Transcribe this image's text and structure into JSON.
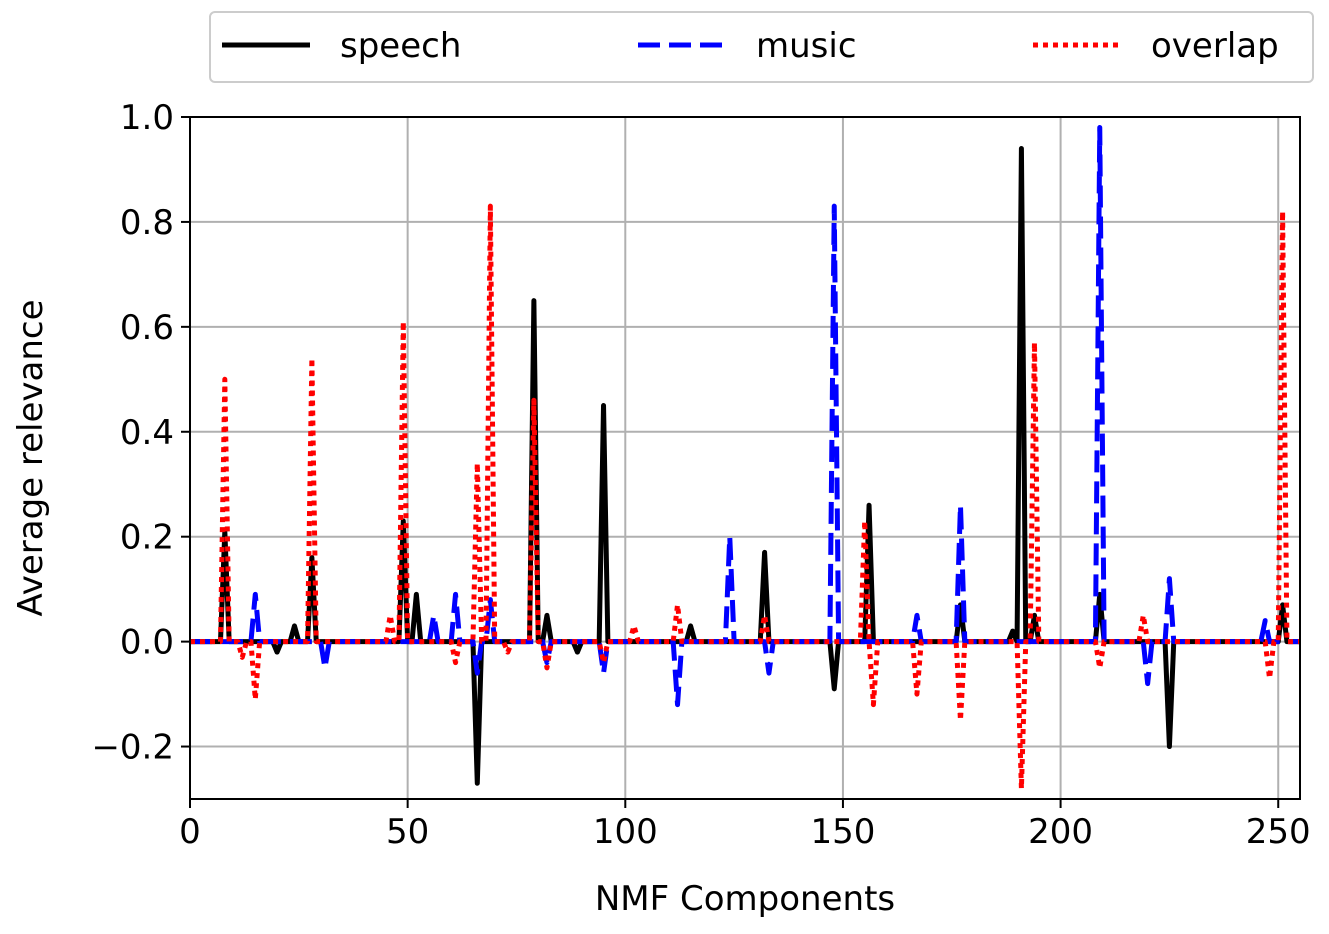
{
  "chart_data": {
    "type": "line",
    "xlabel": "NMF Components",
    "ylabel": "Average relevance",
    "xlim": [
      0,
      255
    ],
    "ylim": [
      -0.3,
      1.0
    ],
    "xticks": [
      0,
      50,
      100,
      150,
      200,
      250
    ],
    "yticks": [
      {
        "value": -0.2,
        "label": "−0.2"
      },
      {
        "value": 0,
        "label": "0.0"
      },
      0.2,
      0.4,
      0.6,
      0.8,
      {
        "value": 1,
        "label": "1.0"
      }
    ],
    "grid": true,
    "legend": "upper center",
    "series": [
      {
        "name": "speech",
        "color": "#000000",
        "style": "solid",
        "values": [
          0,
          0,
          0,
          0,
          0,
          0,
          0,
          0,
          0.21,
          0,
          0,
          0,
          0,
          0,
          0,
          0,
          0,
          0,
          0,
          0,
          -0.02,
          0,
          0,
          0,
          0.03,
          0,
          0,
          0,
          0.16,
          0,
          0,
          0,
          0,
          0,
          0,
          0,
          0,
          0,
          0,
          0,
          0,
          0,
          0,
          0,
          0,
          0,
          0,
          0,
          0,
          0.23,
          0,
          0,
          0.09,
          0,
          0,
          0,
          0,
          0,
          0,
          0,
          0,
          0,
          0,
          0,
          0,
          0,
          -0.27,
          0,
          0,
          0,
          0,
          0,
          0,
          0,
          0,
          0,
          0,
          0,
          0,
          0.65,
          0,
          0,
          0.05,
          0,
          0,
          0,
          0,
          0,
          0,
          -0.02,
          0,
          0,
          0,
          0,
          0,
          0.45,
          0,
          0,
          0,
          0,
          0,
          0,
          0,
          0,
          0,
          0,
          0,
          0,
          0,
          0,
          0,
          0,
          0,
          0,
          0,
          0.03,
          0,
          0,
          0,
          0,
          0,
          0,
          0,
          0,
          0,
          0,
          0,
          0,
          0,
          0,
          0,
          0,
          0.17,
          0,
          0,
          0,
          0,
          0,
          0,
          0,
          0,
          0,
          0,
          0,
          0,
          0,
          0,
          0,
          -0.09,
          0,
          0,
          0,
          0,
          0,
          0,
          0,
          0.26,
          0,
          0,
          0,
          0,
          0,
          0,
          0,
          0,
          0,
          0,
          0,
          0,
          0,
          0,
          0,
          0,
          0,
          0,
          0,
          0,
          0.07,
          0,
          0,
          0,
          0,
          0,
          0,
          0,
          0,
          0,
          0,
          0,
          0.02,
          0,
          0.94,
          0,
          0,
          0.05,
          0,
          0,
          0,
          0,
          0,
          0,
          0,
          0,
          0,
          0,
          0,
          0,
          0,
          0,
          0.09,
          0,
          0,
          0,
          0,
          0,
          0,
          0,
          0,
          0,
          0,
          0,
          0,
          0,
          0,
          0,
          -0.2,
          0,
          0,
          0,
          0,
          0,
          0,
          0,
          0,
          0,
          0,
          0,
          0,
          0,
          0,
          0,
          0,
          0,
          0,
          0,
          0,
          0,
          0,
          0,
          0,
          0,
          0.07,
          0,
          0,
          0,
          0
        ]
      },
      {
        "name": "music",
        "color": "#0000ff",
        "style": "dashed",
        "values": [
          0,
          0,
          0,
          0,
          0,
          0,
          0,
          0,
          0,
          0,
          0,
          0,
          0,
          0,
          0,
          0.09,
          0,
          0,
          0,
          0,
          0,
          0,
          0,
          0,
          0,
          0,
          0,
          0,
          0,
          0,
          0,
          -0.05,
          0,
          0,
          0,
          0,
          0,
          0,
          0,
          0,
          0,
          0,
          0,
          0,
          0,
          0,
          0,
          0,
          0,
          0,
          0,
          0,
          0,
          0,
          0,
          0,
          0.05,
          0,
          0,
          0,
          0,
          0.09,
          0,
          0,
          0,
          0,
          -0.06,
          0,
          0,
          0.08,
          0,
          0,
          0,
          0,
          0,
          0,
          0,
          0,
          0,
          0,
          0,
          0,
          -0.04,
          0,
          0,
          0,
          0,
          0,
          0,
          0,
          0,
          0,
          0,
          0,
          0,
          -0.06,
          0,
          0,
          0,
          0,
          0,
          0,
          0,
          0,
          0,
          0,
          0,
          0,
          0,
          0,
          0,
          0,
          -0.12,
          0,
          0,
          0,
          0,
          0,
          0,
          0,
          0,
          0,
          0,
          0,
          0.2,
          0,
          0,
          0,
          0,
          0,
          0,
          0,
          0,
          -0.06,
          0,
          0,
          0,
          0,
          0,
          0,
          0,
          0,
          0,
          0,
          0,
          0,
          0,
          0,
          0.83,
          0,
          0,
          0,
          0,
          0,
          0,
          0,
          0,
          0,
          0,
          0,
          0,
          0,
          0,
          0,
          0,
          0,
          0,
          0.05,
          0,
          0,
          0,
          0,
          0,
          0,
          0,
          0,
          0,
          0.26,
          0,
          0,
          0,
          0,
          0,
          0,
          0,
          0,
          0,
          0,
          0,
          0,
          0,
          0,
          0,
          0,
          0,
          0,
          0,
          0,
          0,
          0,
          0,
          0,
          0,
          0,
          0,
          0,
          0,
          0,
          0,
          0.98,
          0,
          0,
          0,
          0,
          0,
          0,
          0,
          0,
          0,
          0,
          -0.08,
          0,
          0,
          0,
          0,
          0.12,
          0,
          0,
          0,
          0,
          0,
          0,
          0,
          0,
          0,
          0,
          0,
          0,
          0,
          0,
          0,
          0,
          0,
          0,
          0,
          0,
          0,
          0.04,
          0,
          0,
          0,
          0,
          0,
          0,
          0,
          0
        ]
      },
      {
        "name": "overlap",
        "color": "#ff0000",
        "style": "dotted",
        "values": [
          0,
          0,
          0,
          0,
          0,
          0,
          0,
          0,
          0.5,
          0,
          0,
          0,
          -0.03,
          0,
          0,
          -0.11,
          0,
          0,
          0,
          0,
          0,
          0,
          0,
          0,
          0,
          0,
          0,
          0,
          0.54,
          0,
          0,
          0,
          0,
          0,
          0,
          0,
          0,
          0,
          0,
          0,
          0,
          0,
          0,
          0,
          0,
          0,
          0.05,
          0,
          0,
          0.61,
          0,
          0,
          0,
          0,
          0,
          0,
          0,
          0,
          0,
          0,
          0,
          -0.04,
          0,
          0,
          0,
          0,
          0.34,
          0,
          0,
          0.83,
          0,
          0,
          0,
          -0.02,
          0,
          0,
          0,
          0,
          0,
          0.46,
          0,
          0,
          -0.05,
          0,
          0,
          0,
          0,
          0,
          0,
          0,
          0,
          0,
          0,
          0,
          0,
          -0.04,
          0,
          0,
          0,
          0,
          0,
          0,
          0.03,
          0,
          0,
          0,
          0,
          0,
          0,
          0,
          0,
          0,
          0.07,
          0,
          0,
          0,
          0,
          0,
          0,
          0,
          0,
          0,
          0,
          0,
          0,
          0,
          0,
          0,
          0,
          0,
          0,
          0,
          0.05,
          0,
          0,
          0,
          0,
          0,
          0,
          0,
          0,
          0,
          0,
          0,
          0,
          0,
          0,
          0,
          0,
          0,
          0,
          0,
          0,
          0,
          0,
          0.23,
          0,
          -0.12,
          0,
          0,
          0,
          0,
          0,
          0,
          0,
          0,
          0,
          -0.1,
          0,
          0,
          0,
          0,
          0,
          0,
          0,
          0,
          0,
          -0.15,
          0,
          0,
          0,
          0,
          0,
          0,
          0,
          0,
          0,
          0,
          0,
          0,
          0,
          -0.28,
          0,
          0,
          0.57,
          0,
          0,
          0,
          0,
          0,
          0,
          0,
          0,
          0,
          0,
          0,
          0,
          0,
          0,
          -0.05,
          0,
          0,
          0,
          0,
          0,
          0,
          0,
          0,
          0,
          0.05,
          0,
          0,
          0,
          0,
          0,
          0,
          0,
          0,
          0,
          0,
          0,
          0,
          0,
          0,
          0,
          0,
          0,
          0,
          0,
          0,
          0,
          0,
          0,
          0,
          0,
          0,
          0,
          0,
          -0.07,
          0,
          0,
          0.82,
          0,
          0,
          0,
          0
        ]
      }
    ]
  }
}
